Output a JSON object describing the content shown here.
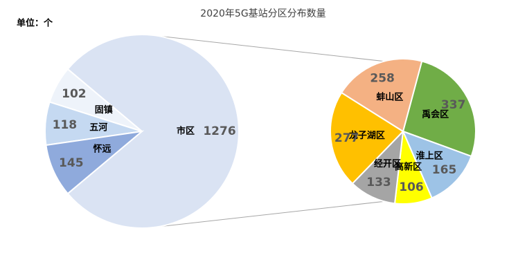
{
  "chart_data": [
    {
      "type": "pie",
      "title": "2020年5G基站分区分布数量",
      "annotation": "单位：个",
      "categories": [
        "市区",
        "固镇",
        "五河",
        "怀远"
      ],
      "values": [
        1276,
        102,
        118,
        145
      ],
      "colors": [
        "#dae3f3",
        "#eef3fa",
        "#c5d9f1",
        "#8faadc"
      ]
    },
    {
      "type": "pie",
      "categories": [
        "禹会区",
        "淮上区",
        "高新区",
        "经开区",
        "龙子湖区",
        "蚌山区"
      ],
      "values": [
        337,
        165,
        106,
        133,
        277,
        258
      ],
      "colors": [
        "#70ad47",
        "#9dc3e6",
        "#ffff00",
        "#a5a5a5",
        "#ffc000",
        "#f4b183"
      ]
    }
  ]
}
